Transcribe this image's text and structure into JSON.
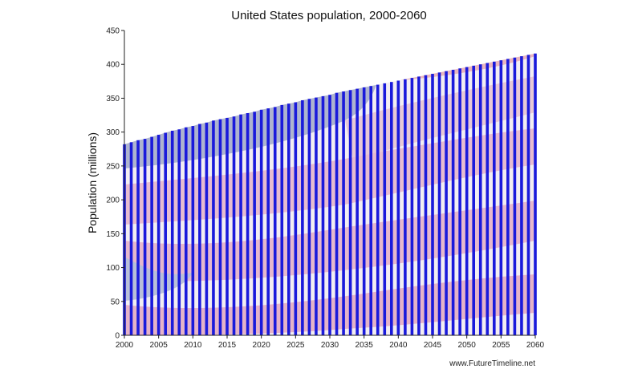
{
  "chart_data": {
    "type": "bar",
    "title": "United States population, 2000-2060",
    "xlabel": "",
    "ylabel": "Population (millions)",
    "x": [
      2000,
      2001,
      2002,
      2003,
      2004,
      2005,
      2006,
      2007,
      2008,
      2009,
      2010,
      2011,
      2012,
      2013,
      2014,
      2015,
      2016,
      2017,
      2018,
      2019,
      2020,
      2021,
      2022,
      2023,
      2024,
      2025,
      2026,
      2027,
      2028,
      2029,
      2030,
      2031,
      2032,
      2033,
      2034,
      2035,
      2036,
      2037,
      2038,
      2039,
      2040,
      2041,
      2042,
      2043,
      2044,
      2045,
      2046,
      2047,
      2048,
      2049,
      2050,
      2051,
      2052,
      2053,
      2054,
      2055,
      2056,
      2057,
      2058,
      2059,
      2060
    ],
    "values": [
      282,
      285,
      288,
      290,
      293,
      296,
      299,
      302,
      304,
      307,
      309,
      312,
      314,
      317,
      319,
      321,
      323,
      326,
      328,
      330,
      333,
      335,
      337,
      340,
      342,
      344,
      347,
      349,
      351,
      353,
      355,
      358,
      360,
      362,
      364,
      366,
      368,
      370,
      372,
      374,
      376,
      378,
      380,
      382,
      384,
      386,
      388,
      390,
      392,
      394,
      396,
      398,
      400,
      402,
      404,
      406,
      408,
      410,
      412,
      414,
      416
    ],
    "xticks": [
      "2000",
      "2005",
      "2010",
      "2015",
      "2020",
      "2025",
      "2030",
      "2035",
      "2040",
      "2045",
      "2050",
      "2055",
      "2060"
    ],
    "yticks": [
      "0",
      "50",
      "100",
      "150",
      "200",
      "250",
      "300",
      "350",
      "400",
      "450"
    ],
    "ylim": [
      0,
      450
    ],
    "xlim": [
      2000,
      2060
    ],
    "grid": false,
    "bar_color": "#1a1adb",
    "background": "american-flag-image"
  },
  "footer": {
    "credit": "www.FutureTimeline.net"
  }
}
